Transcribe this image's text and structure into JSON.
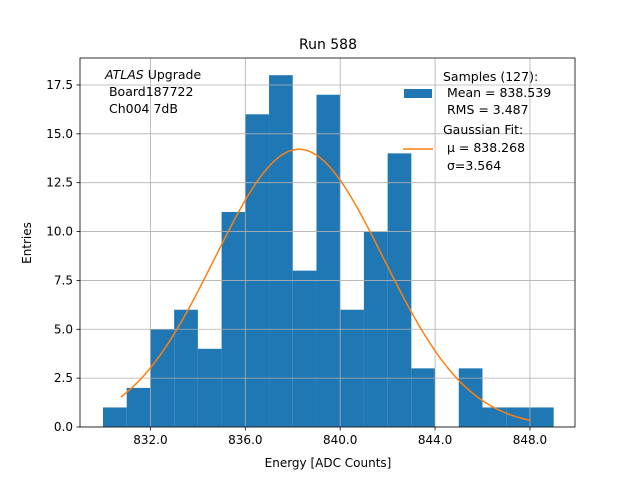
{
  "chart_data": {
    "type": "bar",
    "title": "Run 588",
    "xlabel": "Energy [ADC Counts]",
    "ylabel": "Entries",
    "bin_edges": [
      830,
      831,
      832,
      833,
      834,
      835,
      836,
      837,
      838,
      839,
      840,
      841,
      842,
      843,
      844,
      845,
      846,
      847,
      848,
      849
    ],
    "values": [
      1,
      2,
      5,
      6,
      4,
      11,
      16,
      18,
      8,
      17,
      6,
      10,
      14,
      3,
      0,
      3,
      1,
      1,
      1
    ],
    "xlim": [
      829.03,
      849.9
    ],
    "ylim": [
      0,
      18.88
    ],
    "xticks": [
      832,
      836,
      840,
      844,
      848
    ],
    "xtick_labels": [
      "832.0",
      "836.0",
      "840.0",
      "844.0",
      "848.0"
    ],
    "yticks": [
      0,
      2.5,
      5,
      7.5,
      10,
      12.5,
      15,
      17.5
    ],
    "ytick_labels": [
      "0.0",
      "2.5",
      "5.0",
      "7.5",
      "10.0",
      "12.5",
      "15.0",
      "17.5"
    ],
    "grid": true,
    "fit": {
      "type": "gaussian",
      "mu": 838.268,
      "sigma": 3.564,
      "amplitude": 14.21,
      "x_range": [
        830.75,
        848
      ]
    },
    "colors": {
      "bars": "#1f77b4",
      "fit": "#ff7f0e",
      "grid": "#b0b0b0"
    },
    "annotation": {
      "italic": "ATLAS",
      "line1_rest": " Upgrade",
      "line2": " Board187722",
      "line3": " Ch004 7dB"
    },
    "legend": {
      "placement": "top-right",
      "entries": [
        {
          "lines": [
            "Samples (127):",
            " Mean = 838.539",
            " RMS = 3.487"
          ]
        },
        {
          "lines": [
            "Gaussian Fit:",
            " μ = 838.268",
            " σ=3.564"
          ]
        }
      ]
    }
  }
}
